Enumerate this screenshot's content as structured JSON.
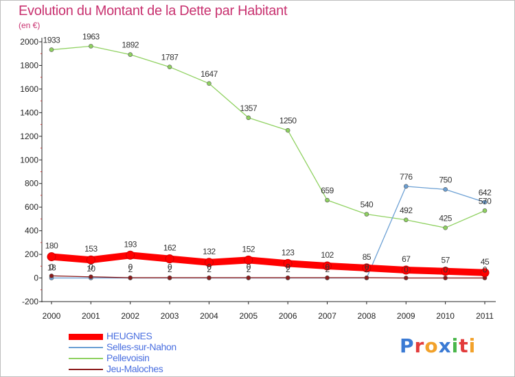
{
  "chart_data": {
    "type": "line",
    "title": "Evolution du Montant de la Dette par Habitant",
    "subtitle": "(en €)",
    "categories": [
      "2000",
      "2001",
      "2002",
      "2003",
      "2004",
      "2005",
      "2006",
      "2007",
      "2008",
      "2009",
      "2010",
      "2011"
    ],
    "ylim": [
      -200,
      2000
    ],
    "yticks": [
      "-200",
      "0",
      "200",
      "400",
      "600",
      "800",
      "1000",
      "1200",
      "1400",
      "1600",
      "1800",
      "2000"
    ],
    "grid": false,
    "legend_position": "bottom-left",
    "series": [
      {
        "name": "HEUGNES",
        "color": "#ff0000",
        "values": [
          180,
          153,
          193,
          162,
          132,
          152,
          123,
          102,
          85,
          67,
          57,
          45
        ],
        "labels": [
          "180",
          "153",
          "193",
          "162",
          "132",
          "152",
          "123",
          "102",
          "85",
          "67",
          "57",
          "45"
        ]
      },
      {
        "name": "Selles-sur-Nahon",
        "color": "#6ca0d4",
        "values": [
          0,
          0,
          0,
          0,
          0,
          0,
          0,
          0,
          0,
          776,
          750,
          642
        ],
        "labels": [
          "0",
          "0",
          "0",
          "0",
          "0",
          "0",
          "0",
          "0",
          "0",
          "776",
          "750",
          "642"
        ]
      },
      {
        "name": "Pellevoisin",
        "color": "#8fd160",
        "values": [
          1933,
          1963,
          1892,
          1787,
          1647,
          1357,
          1250,
          659,
          540,
          492,
          425,
          570
        ],
        "labels": [
          "1933",
          "1963",
          "1892",
          "1787",
          "1647",
          "1357",
          "1250",
          "659",
          "540",
          "492",
          "425",
          "570"
        ]
      },
      {
        "name": "Jeu-Maloches",
        "color": "#8b1a1a",
        "values": [
          18,
          10,
          2,
          2,
          2,
          2,
          2,
          2,
          2,
          0,
          0,
          0
        ],
        "labels": [
          "18",
          "10",
          "2",
          "2",
          "2",
          "2",
          "2",
          "2",
          "2",
          "0",
          "0",
          "0"
        ]
      }
    ]
  },
  "logo": {
    "letters": [
      "P",
      "r",
      "o",
      "x",
      "i",
      "t",
      "i"
    ],
    "colors": [
      "#3a7ad4",
      "#e23b3b",
      "#f2a12a",
      "#3a7ad4",
      "#49b64a",
      "#e23b3b",
      "#f2a12a"
    ]
  }
}
